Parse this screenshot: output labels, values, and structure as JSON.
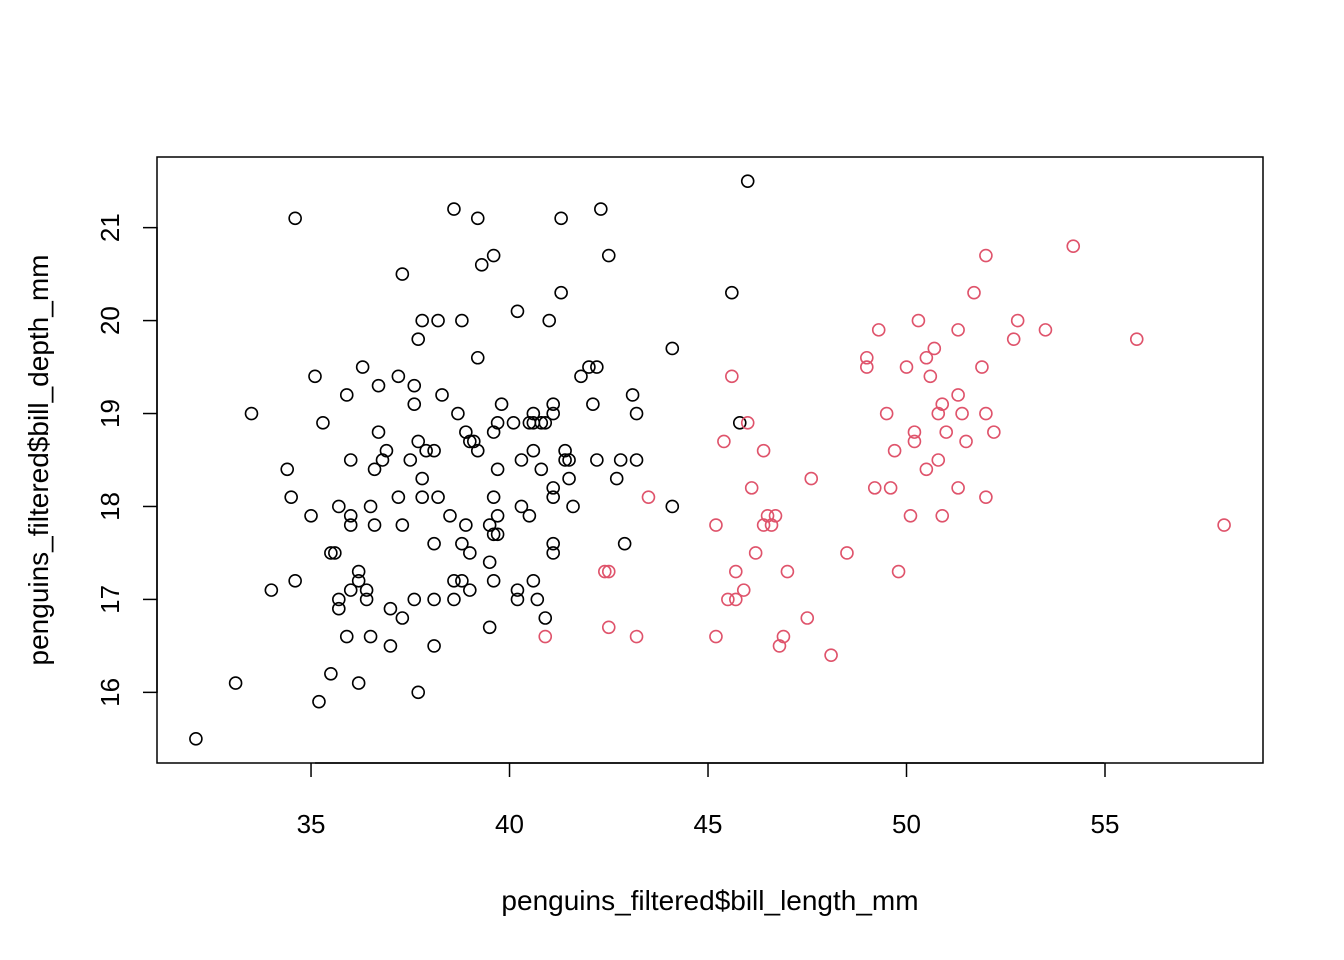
{
  "chart_data": {
    "type": "scatter",
    "xlabel": "penguins_filtered$bill_length_mm",
    "ylabel": "penguins_filtered$bill_depth_mm",
    "xlim": [
      31.12,
      58.98
    ],
    "ylim": [
      15.24,
      21.76
    ],
    "x_ticks": [
      35,
      40,
      45,
      50,
      55
    ],
    "y_ticks": [
      16,
      17,
      18,
      19,
      20,
      21
    ],
    "x_tick_labels": [
      "35",
      "40",
      "45",
      "50",
      "55"
    ],
    "y_tick_labels": [
      "16",
      "17",
      "18",
      "19",
      "20",
      "21"
    ],
    "grid": false,
    "legend": "none",
    "series": [
      {
        "color": "#000000",
        "points": [
          [
            32.1,
            15.5
          ],
          [
            33.1,
            16.1
          ],
          [
            33.5,
            19.0
          ],
          [
            34.0,
            17.1
          ],
          [
            34.4,
            18.4
          ],
          [
            34.5,
            18.1
          ],
          [
            34.6,
            21.1
          ],
          [
            34.6,
            17.2
          ],
          [
            35.0,
            17.9
          ],
          [
            35.1,
            19.4
          ],
          [
            35.2,
            15.9
          ],
          [
            35.3,
            18.9
          ],
          [
            35.5,
            17.5
          ],
          [
            35.5,
            16.2
          ],
          [
            35.6,
            17.5
          ],
          [
            35.7,
            18.0
          ],
          [
            35.7,
            17.0
          ],
          [
            35.7,
            16.9
          ],
          [
            35.9,
            19.2
          ],
          [
            35.9,
            16.6
          ],
          [
            36.0,
            18.5
          ],
          [
            36.0,
            17.9
          ],
          [
            36.0,
            17.8
          ],
          [
            36.0,
            17.1
          ],
          [
            36.2,
            17.3
          ],
          [
            36.2,
            17.2
          ],
          [
            36.2,
            16.1
          ],
          [
            36.3,
            19.5
          ],
          [
            36.4,
            17.1
          ],
          [
            36.4,
            17.0
          ],
          [
            36.5,
            18.0
          ],
          [
            36.5,
            16.6
          ],
          [
            36.6,
            18.4
          ],
          [
            36.6,
            17.8
          ],
          [
            36.7,
            19.3
          ],
          [
            36.7,
            18.8
          ],
          [
            36.8,
            18.5
          ],
          [
            36.9,
            18.6
          ],
          [
            37.0,
            16.9
          ],
          [
            37.0,
            16.5
          ],
          [
            37.2,
            19.4
          ],
          [
            37.2,
            18.1
          ],
          [
            37.3,
            20.5
          ],
          [
            37.3,
            17.8
          ],
          [
            37.3,
            16.8
          ],
          [
            37.5,
            18.5
          ],
          [
            37.6,
            19.3
          ],
          [
            37.6,
            19.1
          ],
          [
            37.6,
            17.0
          ],
          [
            37.7,
            19.8
          ],
          [
            37.7,
            18.7
          ],
          [
            37.7,
            16.0
          ],
          [
            37.8,
            20.0
          ],
          [
            37.8,
            18.3
          ],
          [
            37.8,
            18.1
          ],
          [
            37.9,
            18.6
          ],
          [
            38.1,
            18.6
          ],
          [
            38.1,
            17.6
          ],
          [
            38.1,
            17.0
          ],
          [
            38.1,
            16.5
          ],
          [
            38.2,
            20.0
          ],
          [
            38.2,
            18.1
          ],
          [
            38.3,
            19.2
          ],
          [
            38.5,
            17.9
          ],
          [
            38.6,
            21.2
          ],
          [
            38.6,
            17.2
          ],
          [
            38.6,
            17.0
          ],
          [
            38.7,
            19.0
          ],
          [
            38.8,
            20.0
          ],
          [
            38.8,
            17.6
          ],
          [
            38.8,
            17.2
          ],
          [
            38.9,
            18.8
          ],
          [
            38.9,
            17.8
          ],
          [
            39.0,
            18.7
          ],
          [
            39.0,
            17.5
          ],
          [
            39.0,
            17.1
          ],
          [
            39.1,
            18.7
          ],
          [
            39.2,
            21.1
          ],
          [
            39.2,
            19.6
          ],
          [
            39.2,
            18.6
          ],
          [
            39.3,
            20.6
          ],
          [
            39.5,
            17.8
          ],
          [
            39.5,
            17.4
          ],
          [
            39.5,
            16.7
          ],
          [
            39.6,
            20.7
          ],
          [
            39.6,
            18.8
          ],
          [
            39.6,
            18.1
          ],
          [
            39.6,
            17.7
          ],
          [
            39.6,
            17.2
          ],
          [
            39.7,
            18.9
          ],
          [
            39.7,
            18.4
          ],
          [
            39.7,
            17.9
          ],
          [
            39.7,
            17.7
          ],
          [
            39.8,
            19.1
          ],
          [
            40.1,
            18.9
          ],
          [
            40.2,
            20.1
          ],
          [
            40.2,
            17.1
          ],
          [
            40.2,
            17.0
          ],
          [
            40.3,
            18.5
          ],
          [
            40.3,
            18.0
          ],
          [
            40.5,
            18.9
          ],
          [
            40.5,
            17.9
          ],
          [
            40.6,
            19.0
          ],
          [
            40.6,
            18.9
          ],
          [
            40.6,
            18.6
          ],
          [
            40.6,
            17.2
          ],
          [
            40.7,
            17.0
          ],
          [
            40.8,
            18.4
          ],
          [
            40.8,
            18.9
          ],
          [
            40.9,
            16.8
          ],
          [
            40.9,
            18.9
          ],
          [
            41.0,
            20.0
          ],
          [
            41.1,
            19.1
          ],
          [
            41.1,
            19.0
          ],
          [
            41.1,
            18.2
          ],
          [
            41.1,
            18.1
          ],
          [
            41.1,
            17.6
          ],
          [
            41.1,
            17.5
          ],
          [
            41.3,
            21.1
          ],
          [
            41.3,
            20.3
          ],
          [
            41.4,
            18.6
          ],
          [
            41.4,
            18.5
          ],
          [
            41.5,
            18.5
          ],
          [
            41.5,
            18.3
          ],
          [
            41.6,
            18.0
          ],
          [
            41.8,
            19.4
          ],
          [
            42.0,
            19.5
          ],
          [
            42.1,
            19.1
          ],
          [
            42.2,
            19.5
          ],
          [
            42.2,
            18.5
          ],
          [
            42.3,
            21.2
          ],
          [
            42.5,
            20.7
          ],
          [
            42.7,
            18.3
          ],
          [
            42.8,
            18.5
          ],
          [
            42.9,
            17.6
          ],
          [
            43.1,
            19.2
          ],
          [
            43.2,
            19.0
          ],
          [
            43.2,
            18.5
          ],
          [
            44.1,
            19.7
          ],
          [
            44.1,
            18.0
          ],
          [
            45.6,
            20.3
          ],
          [
            45.8,
            18.9
          ],
          [
            46.0,
            21.5
          ]
        ]
      },
      {
        "color": "#DF536B",
        "points": [
          [
            40.9,
            16.6
          ],
          [
            42.4,
            17.3
          ],
          [
            42.5,
            17.3
          ],
          [
            42.5,
            16.7
          ],
          [
            43.2,
            16.6
          ],
          [
            43.5,
            18.1
          ],
          [
            45.2,
            17.8
          ],
          [
            45.2,
            16.6
          ],
          [
            45.4,
            18.7
          ],
          [
            45.5,
            17.0
          ],
          [
            45.6,
            19.4
          ],
          [
            45.7,
            17.3
          ],
          [
            45.7,
            17.0
          ],
          [
            45.9,
            17.1
          ],
          [
            46.0,
            18.9
          ],
          [
            46.1,
            18.2
          ],
          [
            46.2,
            17.5
          ],
          [
            46.4,
            18.6
          ],
          [
            46.4,
            17.8
          ],
          [
            46.5,
            17.9
          ],
          [
            46.6,
            17.8
          ],
          [
            46.7,
            17.9
          ],
          [
            46.8,
            16.5
          ],
          [
            46.9,
            16.6
          ],
          [
            47.0,
            17.3
          ],
          [
            47.5,
            16.8
          ],
          [
            47.6,
            18.3
          ],
          [
            48.1,
            16.4
          ],
          [
            48.5,
            17.5
          ],
          [
            49.0,
            19.6
          ],
          [
            49.0,
            19.5
          ],
          [
            49.2,
            18.2
          ],
          [
            49.3,
            19.9
          ],
          [
            49.5,
            19.0
          ],
          [
            49.6,
            18.2
          ],
          [
            49.7,
            18.6
          ],
          [
            49.8,
            17.3
          ],
          [
            50.0,
            19.5
          ],
          [
            50.1,
            17.9
          ],
          [
            50.2,
            18.8
          ],
          [
            50.2,
            18.7
          ],
          [
            50.3,
            20.0
          ],
          [
            50.5,
            19.6
          ],
          [
            50.5,
            18.4
          ],
          [
            50.6,
            19.4
          ],
          [
            50.7,
            19.7
          ],
          [
            50.8,
            19.0
          ],
          [
            50.8,
            18.5
          ],
          [
            50.9,
            19.1
          ],
          [
            50.9,
            17.9
          ],
          [
            51.0,
            18.8
          ],
          [
            51.3,
            19.9
          ],
          [
            51.3,
            19.2
          ],
          [
            51.3,
            18.2
          ],
          [
            51.4,
            19.0
          ],
          [
            51.5,
            18.7
          ],
          [
            51.7,
            20.3
          ],
          [
            51.9,
            19.5
          ],
          [
            52.0,
            20.7
          ],
          [
            52.0,
            19.0
          ],
          [
            52.0,
            18.1
          ],
          [
            52.2,
            18.8
          ],
          [
            52.7,
            19.8
          ],
          [
            52.8,
            20.0
          ],
          [
            53.5,
            19.9
          ],
          [
            54.2,
            20.8
          ],
          [
            55.8,
            19.8
          ],
          [
            58.0,
            17.8
          ]
        ]
      }
    ]
  }
}
